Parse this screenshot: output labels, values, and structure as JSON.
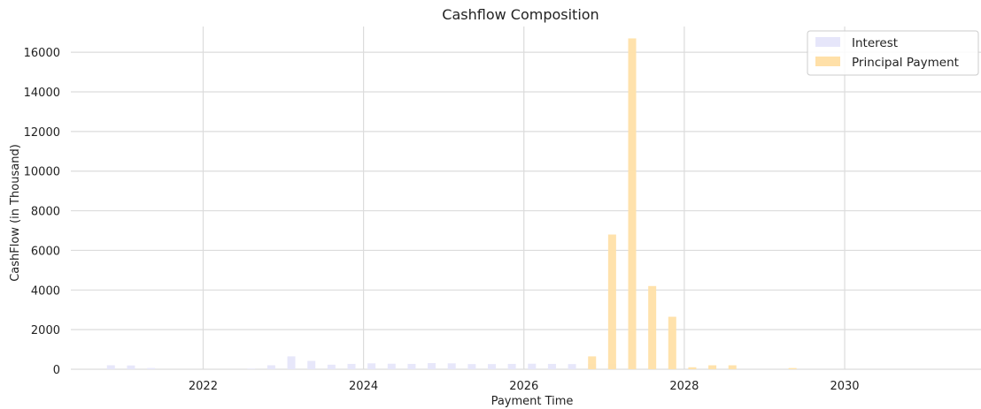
{
  "chart_data": {
    "type": "bar",
    "title": "Cashflow Composition",
    "xlabel": "Payment Time",
    "ylabel": "CashFlow (in Thousand)",
    "xlim": [
      2020.35,
      2031.7
    ],
    "ylim": [
      0,
      17300
    ],
    "x_ticks": [
      2022,
      2024,
      2026,
      2028,
      2030
    ],
    "y_ticks": [
      0,
      2000,
      4000,
      6000,
      8000,
      10000,
      12000,
      14000,
      16000
    ],
    "grid": true,
    "legend_position": "top-right",
    "series": [
      {
        "name": "Interest",
        "color": "#e6e6fa",
        "x": [
          2020.85,
          2021.1,
          2021.35,
          2022.6,
          2022.85,
          2023.1,
          2023.35,
          2023.6,
          2023.85,
          2024.1,
          2024.35,
          2024.6,
          2024.85,
          2025.1,
          2025.35,
          2025.6,
          2025.85,
          2026.1,
          2026.35,
          2026.6,
          2026.85,
          2027.1,
          2027.35
        ],
        "values": [
          200,
          190,
          60,
          30,
          200,
          650,
          420,
          230,
          270,
          300,
          280,
          270,
          310,
          300,
          260,
          260,
          270,
          280,
          270,
          260,
          270,
          280,
          490
        ]
      },
      {
        "name": "Principal Payment",
        "color": "#ffe0a8",
        "x": [
          2026.85,
          2027.1,
          2027.35,
          2027.6,
          2027.85,
          2028.1,
          2028.35,
          2028.6,
          2029.35
        ],
        "values": [
          650,
          6800,
          16700,
          4200,
          2650,
          100,
          200,
          200,
          60
        ]
      }
    ]
  }
}
